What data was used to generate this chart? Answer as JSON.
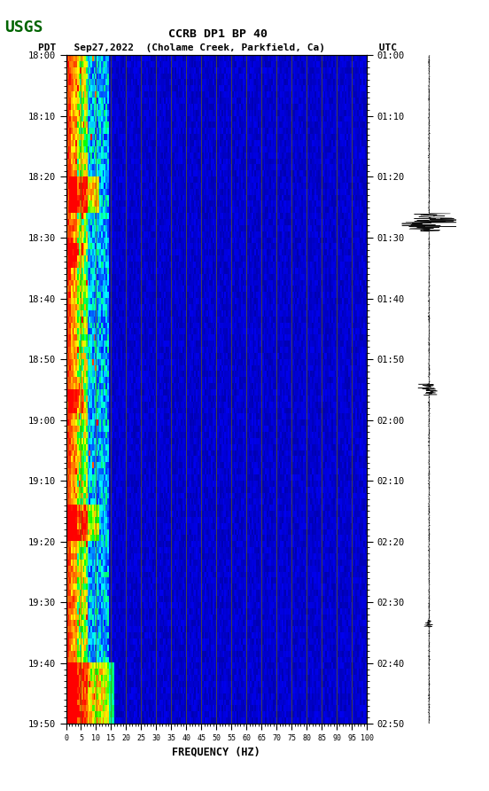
{
  "title_line1": "CCRB DP1 BP 40",
  "title_line2": "PDT   Sep27,2022  (Cholame Creek, Parkfield, Ca)         UTC",
  "xlabel": "FREQUENCY (HZ)",
  "freq_ticks": [
    0,
    5,
    10,
    15,
    20,
    25,
    30,
    35,
    40,
    45,
    50,
    55,
    60,
    65,
    70,
    75,
    80,
    85,
    90,
    95,
    100
  ],
  "time_left_labels": [
    "18:00",
    "18:10",
    "18:20",
    "18:30",
    "18:40",
    "18:50",
    "19:00",
    "19:10",
    "19:20",
    "19:30",
    "19:40",
    "19:50"
  ],
  "time_right_labels": [
    "01:00",
    "01:10",
    "01:20",
    "01:30",
    "01:40",
    "01:50",
    "02:00",
    "02:10",
    "02:20",
    "02:30",
    "02:40",
    "02:50"
  ],
  "n_time_steps": 110,
  "n_freq_bins": 200,
  "background_color": "#ffffff",
  "fig_width": 5.52,
  "fig_height": 8.92
}
